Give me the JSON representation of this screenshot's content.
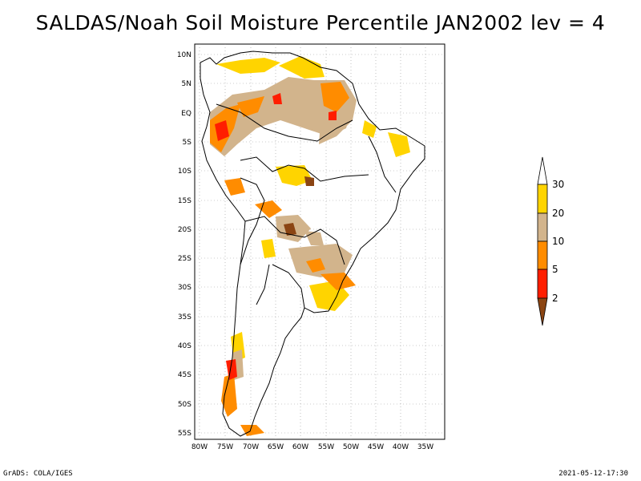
{
  "title": "SALDAS/Noah Soil Moisture Percentile JAN2002 lev = 4",
  "footer": {
    "left": "GrADS: COLA/IGES",
    "right": "2021-05-12-17:30"
  },
  "map": {
    "lat_labels": [
      "10N",
      "5N",
      "EQ",
      "5S",
      "10S",
      "15S",
      "20S",
      "25S",
      "30S",
      "35S",
      "40S",
      "45S",
      "50S",
      "55S"
    ],
    "lon_labels": [
      "80W",
      "75W",
      "70W",
      "65W",
      "60W",
      "55W",
      "50W",
      "45W",
      "40W",
      "35W"
    ],
    "extent": {
      "lon_min": -81,
      "lon_max": -33,
      "lat_min": -56,
      "lat_max": 12
    },
    "grid": "dotted"
  },
  "legend": {
    "labels": [
      "30",
      "20",
      "10",
      "5",
      "2"
    ],
    "colors": {
      "above_30": "#ffffff",
      "20_30": "#ffd400",
      "10_20": "#d2b48c",
      "5_10": "#ff8c00",
      "2_5": "#ff1e00",
      "below_2": "#8b4513"
    }
  }
}
